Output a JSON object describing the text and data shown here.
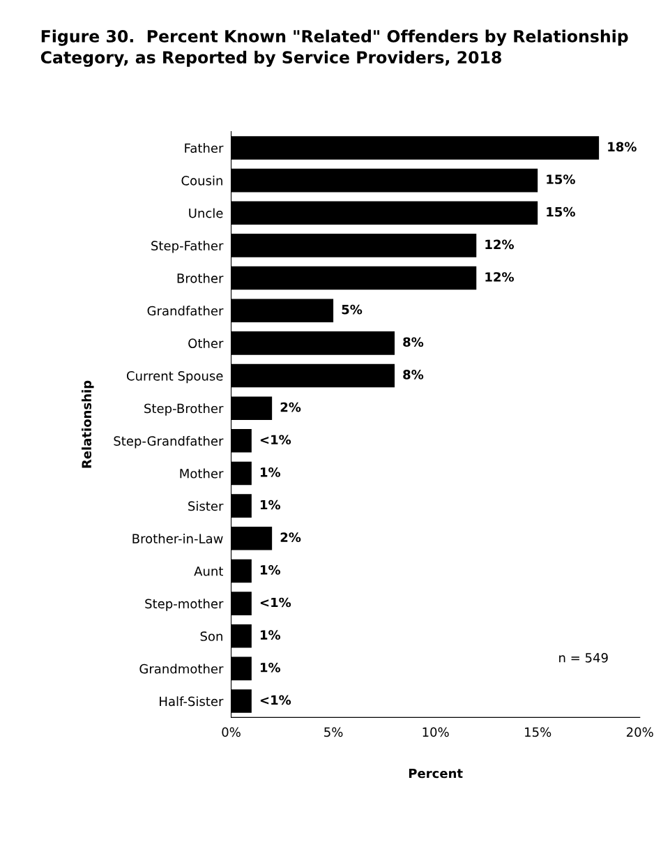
{
  "chart_data": {
    "type": "bar",
    "orientation": "horizontal",
    "title": "Figure 30.  Percent Known \"Related\" Offenders by Relationship Category, as Reported by Service Providers, 2018",
    "xlabel": "Percent",
    "ylabel": "Relationship",
    "categories": [
      "Father",
      "Cousin",
      "Uncle",
      "Step-Father",
      "Brother",
      "Grandfather",
      "Other",
      "Current Spouse",
      "Step-Brother",
      "Step-Grandfather",
      "Mother",
      "Sister",
      "Brother-in-Law",
      "Aunt",
      "Step-mother",
      "Son",
      "Grandmother",
      "Half-Sister"
    ],
    "values": [
      18,
      15,
      15,
      12,
      12,
      5,
      8,
      8,
      2,
      1,
      1,
      1,
      2,
      1,
      1,
      1,
      1,
      1
    ],
    "value_labels": [
      "18%",
      "15%",
      "15%",
      "12%",
      "12%",
      "5%",
      "8%",
      "8%",
      "2%",
      "<1%",
      "1%",
      "1%",
      "2%",
      "1%",
      "<1%",
      "1%",
      "1%",
      "<1%"
    ],
    "color": "#000000",
    "xlim": [
      0,
      20
    ],
    "xticks": [
      {
        "value": 0,
        "label": "0%"
      },
      {
        "value": 5,
        "label": "5%"
      },
      {
        "value": 10,
        "label": "10%"
      },
      {
        "value": 15,
        "label": "15%"
      },
      {
        "value": 20,
        "label": "20%"
      }
    ],
    "grid": false,
    "legend": false,
    "annotations": [
      "n = 549"
    ]
  }
}
